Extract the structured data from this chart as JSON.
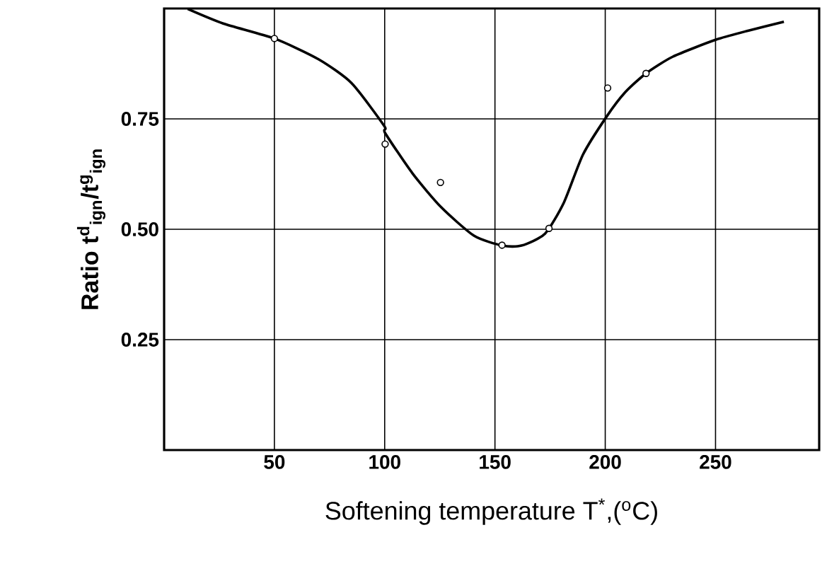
{
  "chart_data": {
    "type": "line",
    "xlabel": "Softening temperature T$^{*}$,($^{o}$C)",
    "ylabel": "Ratio t$^{d}$$_{ign}$/t$^{g}$$_{ign}$",
    "xlim": [
      0,
      297
    ],
    "ylim": [
      0,
      1.0
    ],
    "xticks": [
      50,
      100,
      150,
      200,
      250
    ],
    "yticks": [
      {
        "value": 0.25,
        "label": "0.25"
      },
      {
        "value": 0.5,
        "label": "0.50"
      },
      {
        "value": 0.75,
        "label": "0.75"
      }
    ],
    "grid": true,
    "series": [
      {
        "color": "#000000",
        "marker": "none",
        "line_style": "solid",
        "x": [
          10.7,
          26.8,
          50,
          70,
          85,
          99.8,
          100.2,
          112.7,
          125.6,
          140.6,
          153.4,
          162,
          172.7,
          181.3,
          189.9,
          200.6,
          209,
          218.5,
          230.7,
          250,
          265,
          281
        ],
        "values": [
          0.999,
          0.966,
          0.932,
          0.885,
          0.831,
          0.734,
          0.718,
          0.626,
          0.55,
          0.485,
          0.463,
          0.463,
          0.49,
          0.561,
          0.669,
          0.755,
          0.81,
          0.853,
          0.891,
          0.929,
          0.95,
          0.97
        ]
      },
      {
        "type": "scatter",
        "color": "#000000",
        "marker": "circle",
        "x": [
          50,
          100.2,
          125.3,
          153.2,
          174.5,
          201.1,
          218.5
        ],
        "values": [
          0.932,
          0.693,
          0.606,
          0.464,
          0.502,
          0.82,
          0.853
        ]
      }
    ]
  }
}
